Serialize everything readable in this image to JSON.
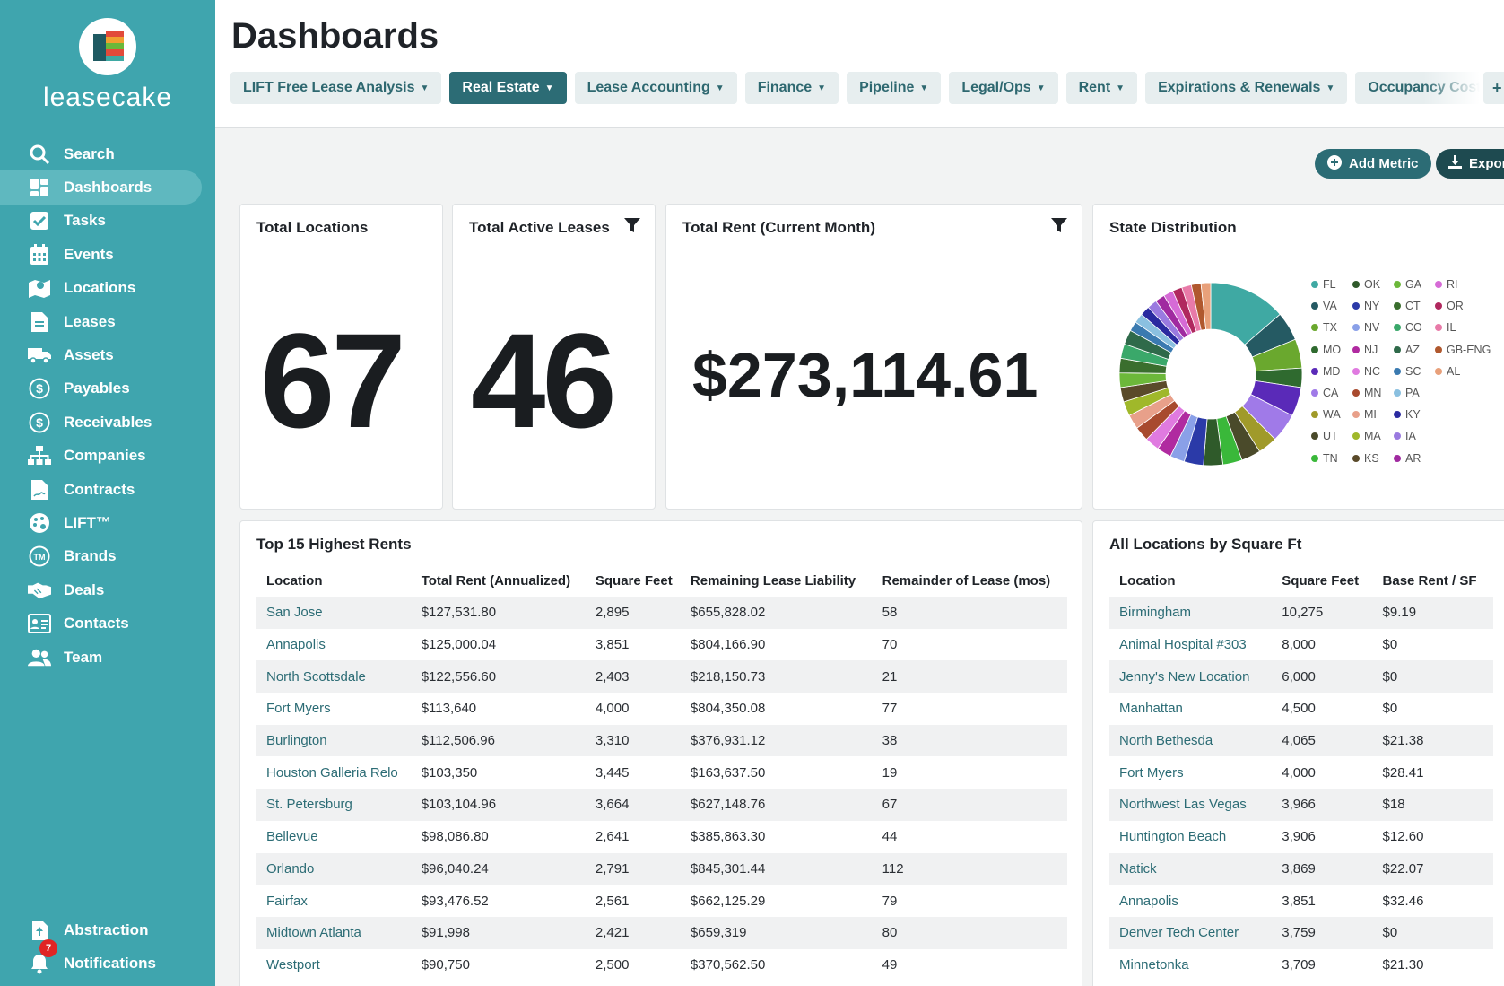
{
  "app": {
    "name": "leasecake"
  },
  "sidebar": {
    "items": [
      {
        "label": "Search",
        "icon": "search-icon"
      },
      {
        "label": "Dashboards",
        "icon": "dashboard-icon",
        "active": true
      },
      {
        "label": "Tasks",
        "icon": "check-square-icon"
      },
      {
        "label": "Events",
        "icon": "calendar-icon"
      },
      {
        "label": "Locations",
        "icon": "map-pin-icon"
      },
      {
        "label": "Leases",
        "icon": "document-icon"
      },
      {
        "label": "Assets",
        "icon": "truck-icon"
      },
      {
        "label": "Payables",
        "icon": "dollar-circle-icon"
      },
      {
        "label": "Receivables",
        "icon": "dollar-circle-icon"
      },
      {
        "label": "Companies",
        "icon": "org-chart-icon"
      },
      {
        "label": "Contracts",
        "icon": "contract-icon"
      },
      {
        "label": "LIFT™",
        "icon": "palette-icon"
      },
      {
        "label": "Brands",
        "icon": "trademark-icon"
      },
      {
        "label": "Deals",
        "icon": "handshake-icon"
      },
      {
        "label": "Contacts",
        "icon": "contact-card-icon"
      },
      {
        "label": "Team",
        "icon": "team-icon"
      }
    ],
    "bottom": [
      {
        "label": "Abstraction",
        "icon": "upload-document-icon"
      },
      {
        "label": "Notifications",
        "icon": "bell-icon",
        "badge": "7"
      }
    ]
  },
  "header": {
    "title": "Dashboards",
    "tabs": [
      {
        "label": "LIFT Free Lease Analysis"
      },
      {
        "label": "Real Estate",
        "active": true
      },
      {
        "label": "Lease Accounting"
      },
      {
        "label": "Finance"
      },
      {
        "label": "Pipeline"
      },
      {
        "label": "Legal/Ops"
      },
      {
        "label": "Rent"
      },
      {
        "label": "Expirations & Renewals"
      },
      {
        "label": "Occupancy Costs"
      }
    ],
    "more_label": "+"
  },
  "actions": {
    "add_metric": "Add Metric",
    "export": "Export"
  },
  "metrics": {
    "total_locations": {
      "title": "Total Locations",
      "value": "67"
    },
    "total_active_leases": {
      "title": "Total Active Leases",
      "value": "46"
    },
    "total_rent": {
      "title": "Total Rent (Current Month)",
      "value": "$273,114.61"
    }
  },
  "state_distribution": {
    "title": "State Distribution",
    "legend_rows": [
      [
        {
          "s": "FL",
          "c": "#3fa9a3"
        },
        {
          "s": "OK",
          "c": "#2f5a2a"
        },
        {
          "s": "GA",
          "c": "#6cb83a"
        },
        {
          "s": "RI",
          "c": "#d66bd6"
        }
      ],
      [
        {
          "s": "VA",
          "c": "#255a63"
        },
        {
          "s": "NY",
          "c": "#2b3aa8"
        },
        {
          "s": "CT",
          "c": "#3a6e2e"
        },
        {
          "s": "OR",
          "c": "#b0285e"
        }
      ],
      [
        {
          "s": "TX",
          "c": "#6aa82e"
        },
        {
          "s": "NV",
          "c": "#8aa0e8"
        },
        {
          "s": "CO",
          "c": "#3aa86a"
        },
        {
          "s": "IL",
          "c": "#e87aa8"
        }
      ],
      [
        {
          "s": "MO",
          "c": "#2f6a2f"
        },
        {
          "s": "NJ",
          "c": "#b02aa0"
        },
        {
          "s": "AZ",
          "c": "#2f6a4a"
        },
        {
          "s": "GB-ENG",
          "c": "#b0582e"
        }
      ],
      [
        {
          "s": "MD",
          "c": "#5a2ab8"
        },
        {
          "s": "NC",
          "c": "#e07ae0"
        },
        {
          "s": "SC",
          "c": "#3a7ab0"
        },
        {
          "s": "AL",
          "c": "#e8a07a"
        }
      ],
      [
        {
          "s": "CA",
          "c": "#a07ae8"
        },
        {
          "s": "MN",
          "c": "#a84a2e"
        },
        {
          "s": "PA",
          "c": "#8ac0e0"
        }
      ],
      [
        {
          "s": "WA",
          "c": "#a09a2a"
        },
        {
          "s": "MI",
          "c": "#e8a08a"
        },
        {
          "s": "KY",
          "c": "#2a2aa0"
        }
      ],
      [
        {
          "s": "UT",
          "c": "#4a4a2a"
        },
        {
          "s": "MA",
          "c": "#a0b82a"
        },
        {
          "s": "IA",
          "c": "#9a7ae0"
        }
      ],
      [
        {
          "s": "TN",
          "c": "#3ab83a"
        },
        {
          "s": "KS",
          "c": "#5a4a2a"
        },
        {
          "s": "AR",
          "c": "#a02aa0"
        }
      ]
    ],
    "slices": [
      {
        "color": "#3fa9a3",
        "value": 8
      },
      {
        "color": "#255a63",
        "value": 3
      },
      {
        "color": "#6aa82e",
        "value": 3
      },
      {
        "color": "#2f6a2f",
        "value": 2
      },
      {
        "color": "#5a2ab8",
        "value": 3
      },
      {
        "color": "#a07ae8",
        "value": 3
      },
      {
        "color": "#a09a2a",
        "value": 2
      },
      {
        "color": "#4a4a2a",
        "value": 2
      },
      {
        "color": "#3ab83a",
        "value": 2
      },
      {
        "color": "#2f5a2a",
        "value": 2
      },
      {
        "color": "#2b3aa8",
        "value": 2
      },
      {
        "color": "#8aa0e8",
        "value": 1.5
      },
      {
        "color": "#b02aa0",
        "value": 1.5
      },
      {
        "color": "#e07ae0",
        "value": 1.5
      },
      {
        "color": "#a84a2e",
        "value": 1.5
      },
      {
        "color": "#e8a08a",
        "value": 1.5
      },
      {
        "color": "#a0b82a",
        "value": 1.5
      },
      {
        "color": "#5a4a2a",
        "value": 1.5
      },
      {
        "color": "#6cb83a",
        "value": 1.5
      },
      {
        "color": "#3a6e2e",
        "value": 1.5
      },
      {
        "color": "#3aa86a",
        "value": 1.5
      },
      {
        "color": "#2f6a4a",
        "value": 1.5
      },
      {
        "color": "#3a7ab0",
        "value": 1
      },
      {
        "color": "#8ac0e0",
        "value": 1
      },
      {
        "color": "#2a2aa0",
        "value": 1
      },
      {
        "color": "#9a7ae0",
        "value": 1
      },
      {
        "color": "#a02aa0",
        "value": 1
      },
      {
        "color": "#d66bd6",
        "value": 1
      },
      {
        "color": "#b0285e",
        "value": 1
      },
      {
        "color": "#e87aa8",
        "value": 1
      },
      {
        "color": "#b0582e",
        "value": 1
      },
      {
        "color": "#e8a07a",
        "value": 1
      }
    ]
  },
  "top_rents": {
    "title": "Top 15 Highest Rents",
    "columns": [
      "Location",
      "Total Rent (Annualized)",
      "Square Feet",
      "Remaining Lease Liability",
      "Remainder of Lease (mos)"
    ],
    "rows": [
      [
        "San Jose",
        "$127,531.80",
        "2,895",
        "$655,828.02",
        "58"
      ],
      [
        "Annapolis",
        "$125,000.04",
        "3,851",
        "$804,166.90",
        "70"
      ],
      [
        "North Scottsdale",
        "$122,556.60",
        "2,403",
        "$218,150.73",
        "21"
      ],
      [
        "Fort Myers",
        "$113,640",
        "4,000",
        "$804,350.08",
        "77"
      ],
      [
        "Burlington",
        "$112,506.96",
        "3,310",
        "$376,931.12",
        "38"
      ],
      [
        "Houston Galleria Relo",
        "$103,350",
        "3,445",
        "$163,637.50",
        "19"
      ],
      [
        "St. Petersburg",
        "$103,104.96",
        "3,664",
        "$627,148.76",
        "67"
      ],
      [
        "Bellevue",
        "$98,086.80",
        "2,641",
        "$385,863.30",
        "44"
      ],
      [
        "Orlando",
        "$96,040.24",
        "2,791",
        "$845,301.44",
        "112"
      ],
      [
        "Fairfax",
        "$93,476.52",
        "2,561",
        "$662,125.29",
        "79"
      ],
      [
        "Midtown Atlanta",
        "$91,998",
        "2,421",
        "$659,319",
        "80"
      ],
      [
        "Westport",
        "$90,750",
        "2,500",
        "$370,562.50",
        "49"
      ]
    ]
  },
  "by_sqft": {
    "title": "All Locations by Square Ft",
    "columns": [
      "Location",
      "Square Feet",
      "Base Rent / SF"
    ],
    "rows": [
      [
        "Birmingham",
        "10,275",
        "$9.19"
      ],
      [
        "Animal Hospital #303",
        "8,000",
        "$0"
      ],
      [
        "Jenny's New Location",
        "6,000",
        "$0"
      ],
      [
        "Manhattan",
        "4,500",
        "$0"
      ],
      [
        "North Bethesda",
        "4,065",
        "$21.38"
      ],
      [
        "Fort Myers",
        "4,000",
        "$28.41"
      ],
      [
        "Northwest Las Vegas",
        "3,966",
        "$18"
      ],
      [
        "Huntington Beach",
        "3,906",
        "$12.60"
      ],
      [
        "Natick",
        "3,869",
        "$22.07"
      ],
      [
        "Annapolis",
        "3,851",
        "$32.46"
      ],
      [
        "Denver Tech Center",
        "3,759",
        "$0"
      ],
      [
        "Minnetonka",
        "3,709",
        "$21.30"
      ]
    ]
  }
}
